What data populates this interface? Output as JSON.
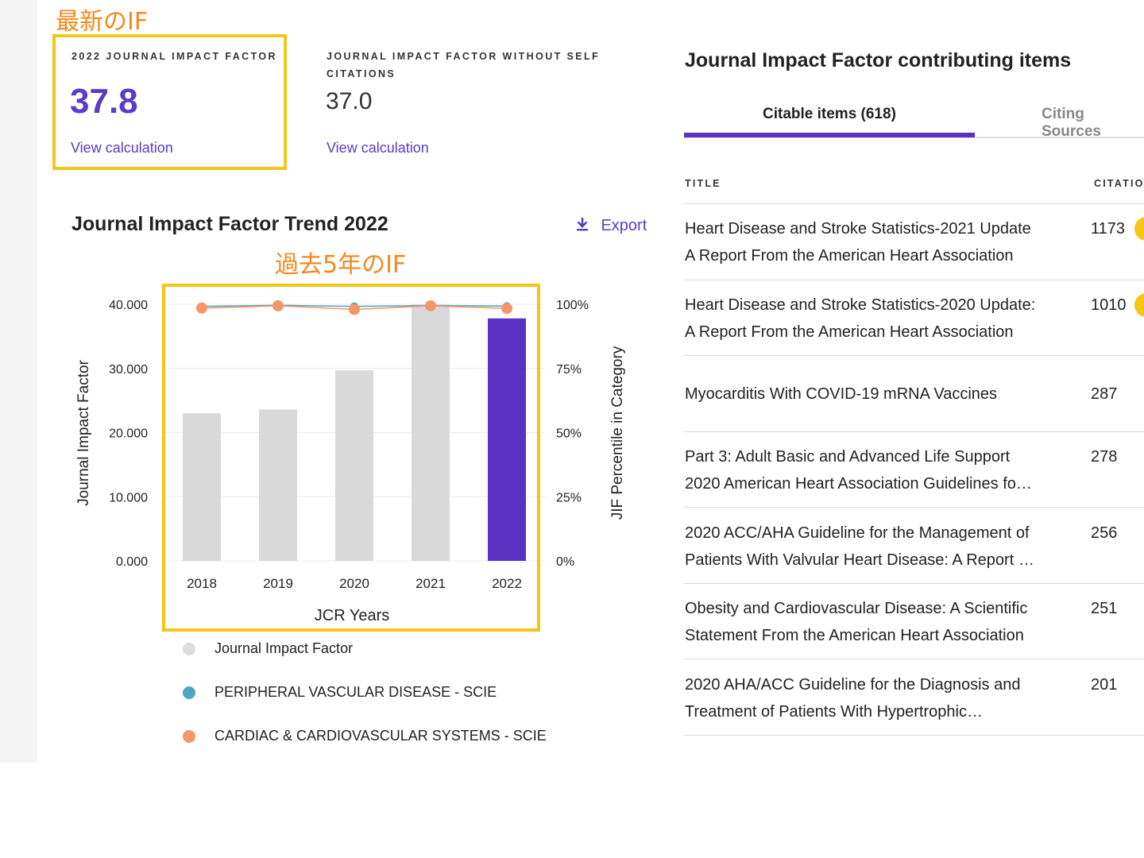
{
  "annotations": {
    "latest_if": "最新のIF",
    "past_five_years": "過去5年のIF"
  },
  "metrics": {
    "jif": {
      "label": "2022 JOURNAL IMPACT FACTOR",
      "value": "37.8",
      "link": "View calculation"
    },
    "jif_no_self": {
      "label_line1": "JOURNAL IMPACT FACTOR WITHOUT SELF",
      "label_line2": "CITATIONS",
      "value": "37.0",
      "link": "View calculation"
    }
  },
  "trend": {
    "title": "Journal Impact Factor Trend 2022",
    "export_label": "Export"
  },
  "chart_data": {
    "type": "bar",
    "categories": [
      "2018",
      "2019",
      "2020",
      "2021",
      "2022"
    ],
    "xlabel": "JCR Years",
    "ylabel": "Journal Impact Factor",
    "y2label": "JIF Percentile in Category",
    "ylim": [
      0,
      40
    ],
    "y_ticks": [
      "0.000",
      "10.000",
      "20.000",
      "30.000",
      "40.000"
    ],
    "y2lim": [
      0,
      100
    ],
    "y2_ticks": [
      "0%",
      "25%",
      "50%",
      "75%",
      "100%"
    ],
    "series": [
      {
        "name": "Journal Impact Factor",
        "type": "bar",
        "axis": "left",
        "values": [
          23.0,
          23.6,
          29.7,
          40.0,
          37.8
        ]
      },
      {
        "name": "PERIPHERAL VASCULAR DISEASE - SCIE",
        "type": "line",
        "axis": "right",
        "values": [
          99.2,
          99.6,
          99.2,
          99.5,
          99.3
        ]
      },
      {
        "name": "CARDIAC & CARDIOVASCULAR SYSTEMS - SCIE",
        "type": "line",
        "axis": "right",
        "values": [
          98.5,
          99.4,
          98.0,
          99.4,
          98.4
        ]
      }
    ],
    "colors": {
      "bar": "#d9d9d9",
      "bar_highlight": "#5b31c1",
      "peripheral": "#4ea7c1",
      "cardiac": "#f5956a",
      "grid": "#ececec"
    },
    "grid": true,
    "legend": "bottom"
  },
  "contributing": {
    "title": "Journal Impact Factor contributing items",
    "tabs": [
      {
        "label": "Citable items (618)",
        "active": true
      },
      {
        "label": "Citing Sources",
        "active": false
      }
    ],
    "columns": {
      "title": "TITLE",
      "citations": "CITATIO"
    },
    "rows": [
      {
        "line1": "Heart Disease and Stroke Statistics-2021 Update",
        "line2": "A Report From the American Heart Association",
        "citations": "1173"
      },
      {
        "line1": "Heart Disease and Stroke Statistics-2020 Update:",
        "line2": "A Report From the American Heart Association",
        "citations": "1010"
      },
      {
        "line1": "Myocarditis With COVID-19 mRNA Vaccines",
        "line2": "",
        "citations": "287"
      },
      {
        "line1": "Part 3: Adult Basic and Advanced Life Support",
        "line2": "2020 American Heart Association Guidelines fo…",
        "citations": "278"
      },
      {
        "line1": "2020 ACC/AHA Guideline for the Management of",
        "line2": "Patients With Valvular Heart Disease: A Report …",
        "citations": "256"
      },
      {
        "line1": "Obesity and Cardiovascular Disease: A Scientific",
        "line2": "Statement From the American Heart Association",
        "citations": "251"
      },
      {
        "line1": "2020 AHA/ACC Guideline for the Diagnosis and",
        "line2": "Treatment of Patients With Hypertrophic…",
        "citations": "201"
      }
    ]
  }
}
